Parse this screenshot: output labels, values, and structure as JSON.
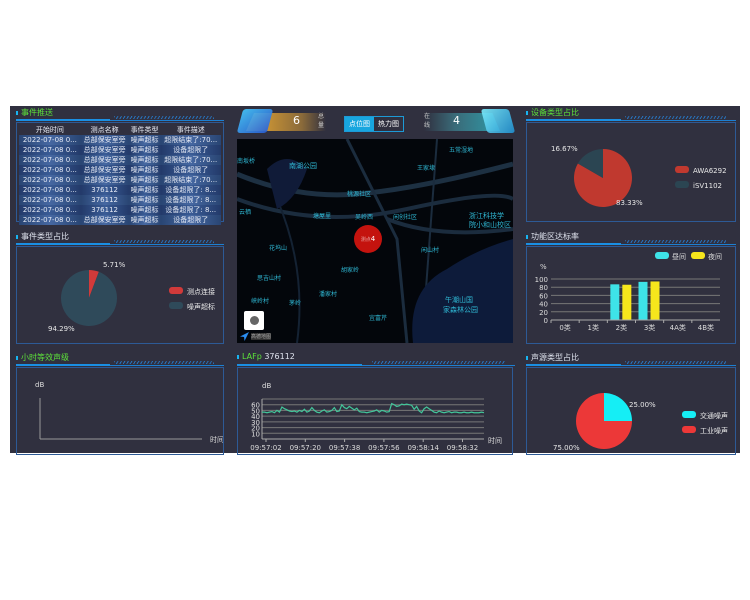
{
  "events": {
    "title": "事件推送",
    "columns": [
      "开始时间",
      "测点名称",
      "事件类型",
      "事件描述"
    ],
    "rows": [
      [
        "2022-07-08 0...",
        "总部保安室旁",
        "噪声超标",
        "超限结束了:70..."
      ],
      [
        "2022-07-08 0...",
        "总部保安室旁",
        "噪声超标",
        "设备超限了"
      ],
      [
        "2022-07-08 0...",
        "总部保安室旁",
        "噪声超标",
        "超限结束了:70..."
      ],
      [
        "2022-07-08 0...",
        "总部保安室旁",
        "噪声超标",
        "设备超限了"
      ],
      [
        "2022-07-08 0...",
        "总部保安室旁",
        "噪声超标",
        "超限结束了:70..."
      ],
      [
        "2022-07-08 0...",
        "376112",
        "噪声超标",
        "设备超限了: 8..."
      ],
      [
        "2022-07-08 0...",
        "376112",
        "噪声超标",
        "设备超限了: 8..."
      ],
      [
        "2022-07-08 0...",
        "376112",
        "噪声超标",
        "设备超限了: 8..."
      ],
      [
        "2022-07-08 0...",
        "总部保安室旁",
        "噪声超标",
        "设备超限了"
      ]
    ]
  },
  "header": {
    "total_value": "6",
    "total_label": "总量",
    "online_value": "4",
    "online_label": "在线",
    "tabs": [
      "点位图",
      "热力图"
    ],
    "active_tab": "点位图"
  },
  "map": {
    "labels": [
      "南湖公园",
      "五常湿地",
      "王家埭",
      "桃源社区",
      "浙江科技学",
      "院小和山校区",
      "云栖",
      "塘屋里",
      "吴岭西",
      "闲创社区",
      "南坂桥",
      "花坞山",
      "闲山村",
      "胡家岭",
      "思吉山村",
      "潘家村",
      "峡岭村",
      "茅岭",
      "宜富芹",
      "午潮山国",
      "家森林公园"
    ],
    "marker_count": "4",
    "marker_label": "测点",
    "logo_text": "高德地图"
  },
  "event_type": {
    "title": "事件类型占比",
    "legend": [
      "测点连接",
      "噪声超标"
    ],
    "colors": [
      "#d13a3a",
      "#2f4a5a"
    ],
    "values": [
      5.71,
      94.29
    ],
    "labels": [
      "5.71%",
      "94.29%"
    ]
  },
  "hourly": {
    "title": "小时等效声级",
    "ylabel": "dB",
    "xlabel": "时间"
  },
  "lafp": {
    "title": "LAFp",
    "device": "376112"
  },
  "device_type": {
    "title": "设备类型占比",
    "legend": [
      "AWA6292",
      "iSV1102"
    ],
    "colors": [
      "#c0392f",
      "#2b4552"
    ],
    "values": [
      83.33,
      16.67
    ],
    "labels": [
      "83.33%",
      "16.67%"
    ]
  },
  "func_zone": {
    "title": "功能区达标率"
  },
  "source_type": {
    "title": "声源类型占比",
    "legend": [
      "交通噪声",
      "工业噪声"
    ],
    "colors": [
      "#15eef5",
      "#ec3838"
    ],
    "values": [
      25,
      75
    ],
    "labels": [
      "25.00%",
      "75.00%"
    ]
  },
  "chart_data": [
    {
      "type": "bar",
      "title": "功能区达标率",
      "ylabel": "%",
      "categories": [
        "0类",
        "1类",
        "2类",
        "3类",
        "4A类",
        "4B类"
      ],
      "ylim": [
        0,
        100
      ],
      "yticks": [
        0,
        20,
        40,
        60,
        80,
        100
      ],
      "legend_placement": "top-right",
      "grid": true,
      "series": [
        {
          "name": "昼间",
          "color": "#3ee3e8",
          "values": [
            null,
            null,
            87,
            93,
            null,
            null
          ]
        },
        {
          "name": "夜间",
          "color": "#f6e61c",
          "values": [
            null,
            null,
            86,
            94,
            null,
            null
          ]
        }
      ]
    },
    {
      "type": "line",
      "title": "LAFp 376112",
      "ylabel": "dB",
      "xlabel": "时间",
      "ylim": [
        0,
        70
      ],
      "yticks": [
        10,
        20,
        30,
        40,
        50,
        60
      ],
      "grid": true,
      "color": "#43c69a",
      "xticks": [
        "09:57:02",
        "09:57:20",
        "09:57:38",
        "09:57:56",
        "09:58:14",
        "09:58:32"
      ],
      "values": [
        47,
        47,
        46,
        47,
        48,
        46,
        50,
        47,
        56,
        53,
        51,
        49,
        48,
        49,
        47,
        50,
        48,
        52,
        47,
        49,
        55,
        50,
        47,
        46,
        49,
        51,
        47,
        48,
        50,
        55,
        48,
        49,
        60,
        55,
        53,
        57,
        54,
        51,
        54,
        48,
        47,
        47,
        46,
        47,
        48,
        49,
        51,
        47,
        50,
        49,
        47,
        48,
        62,
        60,
        57,
        58,
        61,
        60,
        61,
        60,
        59,
        52,
        57,
        49,
        46,
        53,
        56,
        53,
        50,
        47,
        46,
        49,
        47,
        46,
        47,
        48,
        46,
        47,
        47,
        46,
        46,
        47,
        46,
        46,
        47,
        46,
        46,
        46,
        47,
        46
      ]
    },
    {
      "type": "line",
      "title": "小时等效声级",
      "ylabel": "dB",
      "xlabel": "时间",
      "values": []
    }
  ]
}
